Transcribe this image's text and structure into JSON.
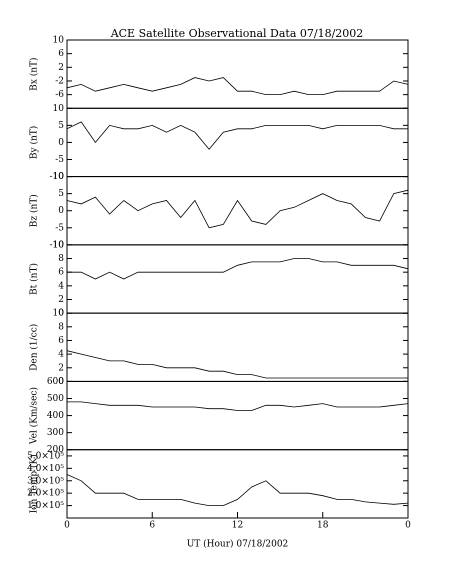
{
  "chart_data": [
    {
      "type": "line",
      "title": "ACE Satellite Observational Data   07/18/2002",
      "y_label": "Bx (nT)",
      "x": [
        0,
        1,
        2,
        3,
        4,
        5,
        6,
        7,
        8,
        9,
        10,
        11,
        12,
        13,
        14,
        15,
        16,
        17,
        18,
        19,
        20,
        21,
        22,
        23,
        24
      ],
      "series": [
        {
          "color": "#000000",
          "values": [
            -4,
            -3,
            -5,
            -4,
            -3,
            -4,
            -5,
            -4,
            -3,
            -1,
            -2,
            -1,
            -5,
            -5,
            -6,
            -6,
            -5,
            -6,
            -6,
            -5,
            -5,
            -5,
            -5,
            -2,
            -3
          ]
        }
      ],
      "xlim": [
        0,
        24
      ],
      "ylim": [
        -10,
        10
      ],
      "yticks": [
        10,
        6,
        2,
        -2,
        -6
      ]
    },
    {
      "type": "line",
      "y_label": "By (nT)",
      "x": [
        0,
        1,
        2,
        3,
        4,
        5,
        6,
        7,
        8,
        9,
        10,
        11,
        12,
        13,
        14,
        15,
        16,
        17,
        18,
        19,
        20,
        21,
        22,
        23,
        24
      ],
      "series": [
        {
          "color": "#000000",
          "values": [
            4,
            6,
            0,
            5,
            4,
            4,
            5,
            3,
            5,
            3,
            -2,
            3,
            4,
            4,
            5,
            5,
            5,
            5,
            4,
            5,
            5,
            5,
            5,
            4,
            4
          ]
        }
      ],
      "xlim": [
        0,
        24
      ],
      "ylim": [
        -10,
        10
      ],
      "yticks": [
        10,
        5,
        0,
        -5,
        -10
      ]
    },
    {
      "type": "line",
      "y_label": "Bz (nT)",
      "x": [
        0,
        1,
        2,
        3,
        4,
        5,
        6,
        7,
        8,
        9,
        10,
        11,
        12,
        13,
        14,
        15,
        16,
        17,
        18,
        19,
        20,
        21,
        22,
        23,
        24
      ],
      "series": [
        {
          "color": "#000000",
          "values": [
            3,
            2,
            4,
            -1,
            3,
            0,
            2,
            3,
            -2,
            3,
            -5,
            -4,
            3,
            -3,
            -4,
            0,
            1,
            3,
            5,
            3,
            2,
            -2,
            -3,
            5,
            6
          ]
        }
      ],
      "xlim": [
        0,
        24
      ],
      "ylim": [
        -10,
        10
      ],
      "yticks": [
        10,
        5,
        0,
        -5,
        -10
      ]
    },
    {
      "type": "line",
      "y_label": "Bt (nT)",
      "x": [
        0,
        1,
        2,
        3,
        4,
        5,
        6,
        7,
        8,
        9,
        10,
        11,
        12,
        13,
        14,
        15,
        16,
        17,
        18,
        19,
        20,
        21,
        22,
        23,
        24
      ],
      "series": [
        {
          "color": "#000000",
          "values": [
            6,
            6,
            5,
            6,
            5,
            6,
            6,
            6,
            6,
            6,
            6,
            6,
            7,
            7.5,
            7.5,
            7.5,
            8,
            8,
            7.5,
            7.5,
            7,
            7,
            7,
            7,
            6.5
          ]
        }
      ],
      "xlim": [
        0,
        24
      ],
      "ylim": [
        0,
        10
      ],
      "yticks": [
        10,
        8,
        6,
        4,
        2,
        0
      ]
    },
    {
      "type": "line",
      "y_label": "Den (1/cc)",
      "x": [
        0,
        1,
        2,
        3,
        4,
        5,
        6,
        7,
        8,
        9,
        10,
        11,
        12,
        13,
        14,
        15,
        16,
        17,
        18,
        19,
        20,
        21,
        22,
        23,
        24
      ],
      "series": [
        {
          "color": "#000000",
          "values": [
            4.5,
            4,
            3.5,
            3,
            3,
            2.5,
            2.5,
            2,
            2,
            2,
            1.5,
            1.5,
            1,
            1,
            0.5,
            0.5,
            0.5,
            0.5,
            0.5,
            0.5,
            0.5,
            0.5,
            0.5,
            0.5,
            0.5
          ]
        }
      ],
      "xlim": [
        0,
        24
      ],
      "ylim": [
        0,
        10
      ],
      "yticks": [
        10,
        8,
        6,
        4,
        2,
        0
      ]
    },
    {
      "type": "line",
      "y_label": "Vel (Km/sec)",
      "x": [
        0,
        1,
        2,
        3,
        4,
        5,
        6,
        7,
        8,
        9,
        10,
        11,
        12,
        13,
        14,
        15,
        16,
        17,
        18,
        19,
        20,
        21,
        22,
        23,
        24
      ],
      "series": [
        {
          "color": "#000000",
          "values": [
            480,
            480,
            470,
            460,
            460,
            460,
            450,
            450,
            450,
            450,
            440,
            440,
            430,
            430,
            460,
            460,
            450,
            460,
            470,
            450,
            450,
            450,
            450,
            460,
            470
          ]
        }
      ],
      "xlim": [
        0,
        24
      ],
      "ylim": [
        200,
        600
      ],
      "yticks": [
        600,
        500,
        400,
        300,
        200
      ]
    },
    {
      "type": "line",
      "y_label": "Ion Temp (K)",
      "x_label": "UT (Hour)  07/18/2002",
      "x": [
        0,
        1,
        2,
        3,
        4,
        5,
        6,
        7,
        8,
        9,
        10,
        11,
        12,
        13,
        14,
        15,
        16,
        17,
        18,
        19,
        20,
        21,
        22,
        23,
        24
      ],
      "series": [
        {
          "color": "#000000",
          "values": [
            350000,
            300000,
            200000,
            200000,
            200000,
            150000,
            150000,
            150000,
            150000,
            120000,
            100000,
            100000,
            150000,
            250000,
            300000,
            200000,
            200000,
            200000,
            180000,
            150000,
            150000,
            130000,
            120000,
            110000,
            120000
          ]
        }
      ],
      "xlim": [
        0,
        24
      ],
      "ylim": [
        0,
        550000
      ],
      "yticks": [
        {
          "value": 500000,
          "label": "5.0×10⁵"
        },
        {
          "value": 400000,
          "label": "4.0×10⁵"
        },
        {
          "value": 300000,
          "label": "3.0×10⁵"
        },
        {
          "value": 200000,
          "label": "2.0×10⁵"
        },
        {
          "value": 100000,
          "label": "1.0×10⁵"
        }
      ],
      "xticks": [
        0,
        6,
        12,
        18,
        {
          "value": 24,
          "label": "0"
        }
      ]
    }
  ]
}
